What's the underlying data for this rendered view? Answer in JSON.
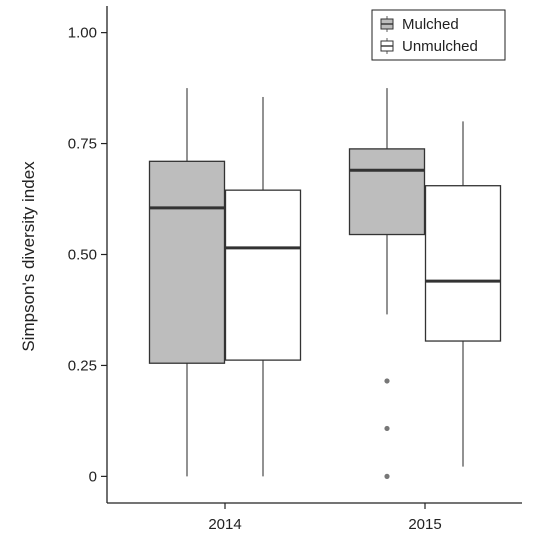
{
  "chart_data": {
    "type": "box",
    "title": "",
    "xlabel": "",
    "ylabel": "Simpson's diversity index",
    "ylim": [
      -0.06,
      1.06
    ],
    "y_ticks": [
      {
        "value": 0,
        "label": "0"
      },
      {
        "value": 0.25,
        "label": "0.25"
      },
      {
        "value": 0.5,
        "label": "0.50"
      },
      {
        "value": 0.75,
        "label": "0.75"
      },
      {
        "value": 1.0,
        "label": "1.00"
      }
    ],
    "categories": [
      "2014",
      "2015"
    ],
    "series": [
      {
        "name": "Mulched",
        "color": "#bdbdbd",
        "boxes": [
          {
            "category": "2014",
            "whisker_low": 0.0,
            "q1": 0.255,
            "median": 0.605,
            "q3": 0.71,
            "whisker_high": 0.875,
            "outliers": []
          },
          {
            "category": "2015",
            "whisker_low": 0.365,
            "q1": 0.545,
            "median": 0.69,
            "q3": 0.738,
            "whisker_high": 0.875,
            "outliers": [
              0.215,
              0.108,
              0.0
            ]
          }
        ]
      },
      {
        "name": "Unmulched",
        "color": "#ffffff",
        "boxes": [
          {
            "category": "2014",
            "whisker_low": 0.0,
            "q1": 0.262,
            "median": 0.515,
            "q3": 0.645,
            "whisker_high": 0.855,
            "outliers": []
          },
          {
            "category": "2015",
            "whisker_low": 0.022,
            "q1": 0.305,
            "median": 0.44,
            "q3": 0.655,
            "whisker_high": 0.8,
            "outliers": []
          }
        ]
      }
    ],
    "legend_position": "top-right",
    "grid": false
  },
  "colors": {
    "axis": "#222222",
    "box_stroke": "#333333",
    "whisker": "#777777",
    "outlier": "#777777"
  }
}
